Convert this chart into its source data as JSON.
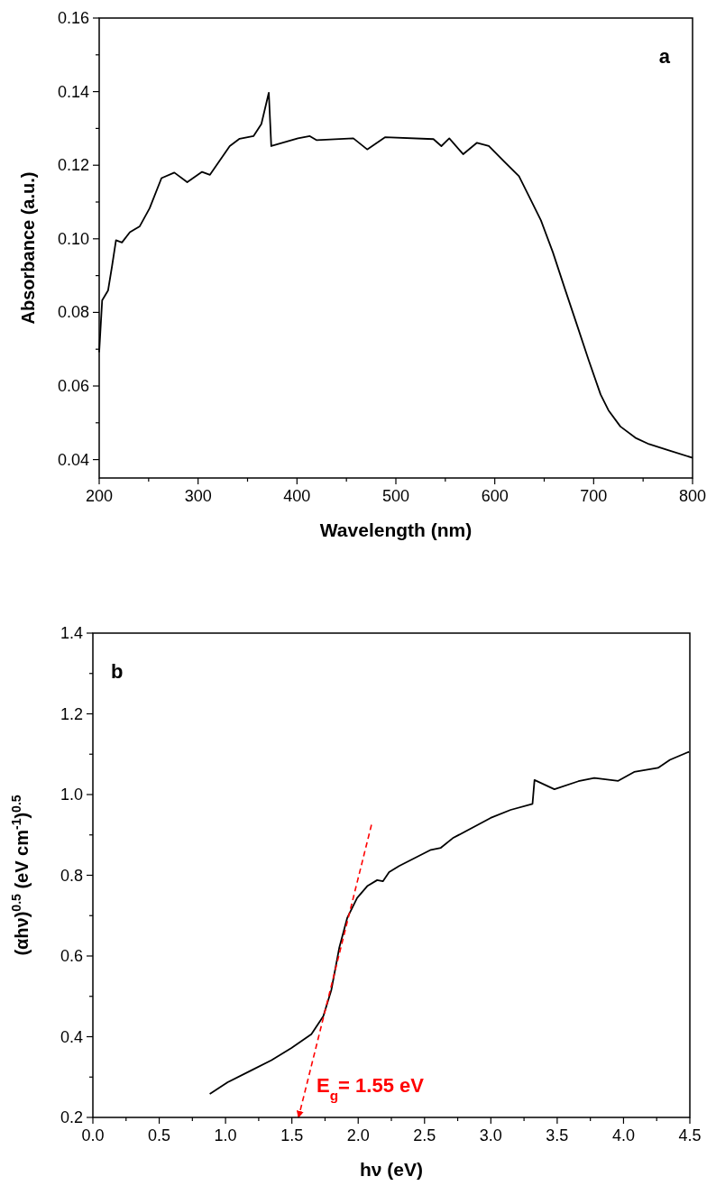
{
  "chart_data": [
    {
      "type": "line",
      "title": "a",
      "xlabel": "Wavelength (nm)",
      "ylabel": "Absorbance (a.u.)",
      "xlim": [
        200,
        800
      ],
      "ylim": [
        0.035,
        0.16
      ],
      "xticks": [
        200,
        {
          "value": 250,
          "label": null
        },
        300,
        {
          "value": 350,
          "label": null
        },
        400,
        {
          "value": 450,
          "label": null
        },
        500,
        {
          "value": 550,
          "label": null
        },
        600,
        {
          "value": 650,
          "label": null
        },
        700,
        {
          "value": 750,
          "label": null
        },
        800
      ],
      "yticks": [
        {
          "value": 0.04,
          "label": "0.04"
        },
        {
          "value": 0.05,
          "label": null
        },
        {
          "value": 0.06,
          "label": "0.06"
        },
        {
          "value": 0.07,
          "label": null
        },
        {
          "value": 0.08,
          "label": "0.08"
        },
        {
          "value": 0.09,
          "label": null
        },
        {
          "value": 0.1,
          "label": "0.10"
        },
        {
          "value": 0.11,
          "label": null
        },
        {
          "value": 0.12,
          "label": "0.12"
        },
        {
          "value": 0.13,
          "label": null
        },
        {
          "value": 0.14,
          "label": "0.14"
        },
        {
          "value": 0.15,
          "label": null
        },
        {
          "value": 0.16,
          "label": "0.16"
        }
      ],
      "series": [
        {
          "color": "#000000",
          "x": [
            200,
            203,
            209,
            213,
            217,
            223,
            231,
            241,
            251,
            263,
            276,
            289,
            304,
            312,
            332,
            342,
            356,
            364,
            371.5,
            374,
            401,
            413,
            420,
            457,
            471,
            489,
            538,
            546,
            554,
            568,
            582,
            594,
            610,
            624.5,
            634.5,
            646.7,
            658.8,
            670.8,
            683,
            695,
            707,
            715,
            727,
            743,
            756,
            776,
            800
          ],
          "values": [
            0.0692,
            0.0833,
            0.086,
            0.0926,
            0.0996,
            0.099,
            0.1018,
            0.1034,
            0.1083,
            0.1165,
            0.118,
            0.1154,
            0.1182,
            0.1174,
            0.1252,
            0.1272,
            0.1279,
            0.1312,
            0.1397,
            0.1252,
            0.1273,
            0.1279,
            0.1268,
            0.1273,
            0.1243,
            0.1276,
            0.1271,
            0.1252,
            0.1273,
            0.123,
            0.1261,
            0.1252,
            0.1209,
            0.117,
            0.1116,
            0.105,
            0.0963,
            0.0865,
            0.0767,
            0.067,
            0.0577,
            0.0534,
            0.049,
            0.0458,
            0.0442,
            0.0425,
            0.0405
          ]
        }
      ]
    },
    {
      "type": "line",
      "title": "b",
      "xlabel": "hν (eV)",
      "ylabel": "(αhν)$^{0.5}$ (eV cm$^{-1}$)$^{0.5}$",
      "xlim": [
        0,
        4.5
      ],
      "ylim": [
        0.2,
        1.4
      ],
      "xticks": [
        {
          "value": 0,
          "label": "0.0"
        },
        {
          "value": 0.25,
          "label": null
        },
        0.5,
        {
          "value": 0.75,
          "label": null
        },
        {
          "value": 1,
          "label": "1.0"
        },
        {
          "value": 1.25,
          "label": null
        },
        1.5,
        {
          "value": 1.75,
          "label": null
        },
        {
          "value": 2,
          "label": "2.0"
        },
        {
          "value": 2.25,
          "label": null
        },
        2.5,
        {
          "value": 2.75,
          "label": null
        },
        {
          "value": 3,
          "label": "3.0"
        },
        {
          "value": 3.25,
          "label": null
        },
        3.5,
        {
          "value": 3.75,
          "label": null
        },
        {
          "value": 4,
          "label": "4.0"
        },
        {
          "value": 4.25,
          "label": null
        },
        4.5
      ],
      "yticks": [
        0.2,
        {
          "value": 0.3,
          "label": null
        },
        0.4,
        {
          "value": 0.5,
          "label": null
        },
        0.6,
        {
          "value": 0.7,
          "label": null
        },
        0.8,
        {
          "value": 0.9,
          "label": null
        },
        {
          "value": 1,
          "label": "1.0"
        },
        {
          "value": 1.1,
          "label": null
        },
        1.2,
        {
          "value": 1.3,
          "label": null
        },
        1.4
      ],
      "annotations": [
        "E$_{g}$= 1.55 eV"
      ],
      "series": [
        {
          "color": "#000000",
          "x": [
            0.881,
            1.016,
            1.197,
            1.347,
            1.497,
            1.647,
            1.737,
            1.797,
            1.857,
            1.917,
            1.992,
            2.068,
            2.143,
            2.186,
            2.233,
            2.308,
            2.458,
            2.548,
            2.623,
            2.713,
            2.998,
            3.149,
            3.314,
            3.329,
            3.479,
            3.66,
            3.78,
            3.96,
            4.08,
            4.26,
            4.35,
            4.494
          ],
          "values": [
            0.258,
            0.287,
            0.317,
            0.342,
            0.372,
            0.406,
            0.451,
            0.515,
            0.62,
            0.694,
            0.744,
            0.773,
            0.788,
            0.785,
            0.808,
            0.823,
            0.848,
            0.863,
            0.868,
            0.892,
            0.942,
            0.962,
            0.977,
            1.036,
            1.013,
            1.033,
            1.041,
            1.034,
            1.056,
            1.066,
            1.086,
            1.106
          ]
        },
        {
          "type": "line",
          "color": "#ff0000",
          "line_style": "dashed",
          "x": [
            2.1,
            1.55
          ],
          "values": [
            0.925,
            0.2
          ]
        }
      ]
    }
  ]
}
